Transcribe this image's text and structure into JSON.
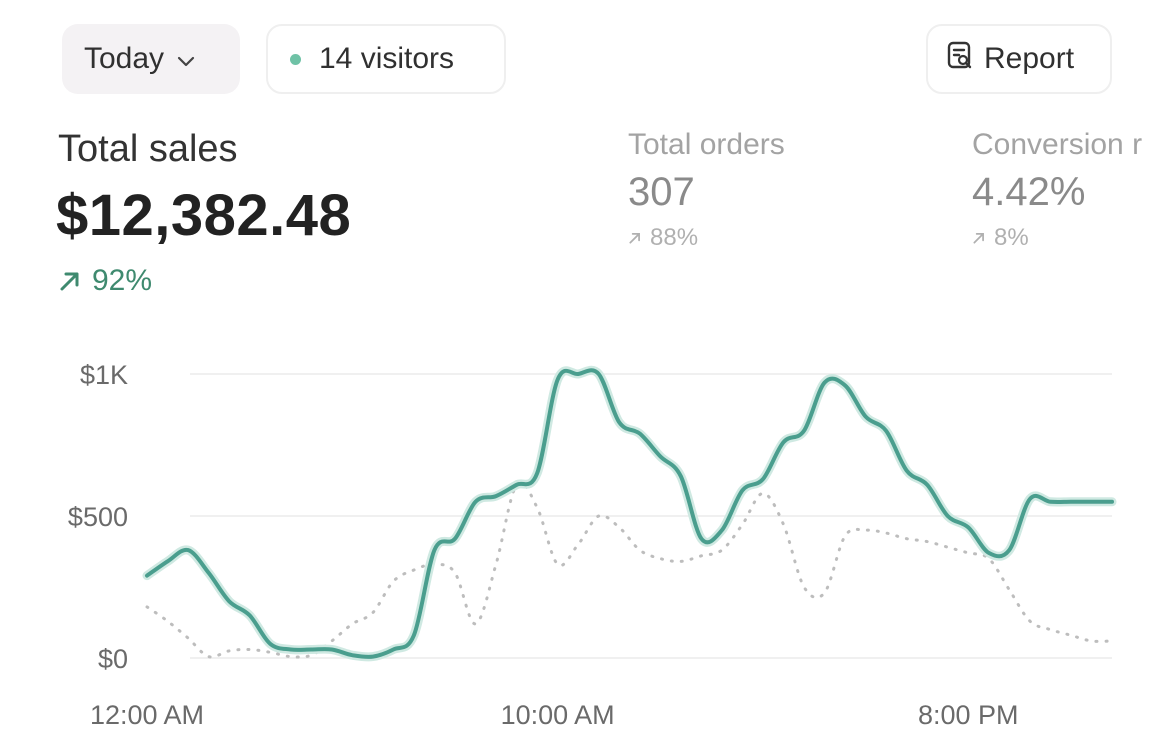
{
  "toolbar": {
    "period_label": "Today",
    "visitors_label": "14 visitors",
    "report_label": "Report",
    "visitors_dot_color": "#6fc2a6"
  },
  "metrics": {
    "total_sales": {
      "label": "Total sales",
      "value": "$12,382.48",
      "change": "92%"
    },
    "total_orders": {
      "label": "Total orders",
      "value": "307",
      "change": "88%"
    },
    "conversion": {
      "label": "Conversion r",
      "value": "4.42%",
      "change": "8%"
    }
  },
  "colors": {
    "accent": "#4a9e8e",
    "positive": "#3f8a6f",
    "comparison": "#bdbdbd"
  },
  "chart_data": {
    "type": "line",
    "y_tick_labels": [
      "$0",
      "$500",
      "$1K"
    ],
    "y_ticks": [
      0,
      500,
      1000
    ],
    "ylim": [
      0,
      1000
    ],
    "x_tick_labels": [
      "12:00 AM",
      "10:00 AM",
      "8:00 PM"
    ],
    "x_ticks": [
      0,
      10,
      20
    ],
    "xlim": [
      0,
      23.5
    ],
    "grid": true,
    "series": [
      {
        "style": "solid",
        "color": "#4a9e8e",
        "x": [
          0,
          0.5,
          1,
          1.5,
          2,
          2.5,
          3,
          3.5,
          4,
          4.5,
          5,
          5.5,
          6,
          6.5,
          7,
          7.5,
          8,
          8.5,
          9,
          9.5,
          10,
          10.5,
          11,
          11.5,
          12,
          12.5,
          13,
          13.5,
          14,
          14.5,
          15,
          15.5,
          16,
          16.5,
          17,
          17.5,
          18,
          18.5,
          19,
          19.5,
          20,
          20.5,
          21,
          21.5,
          22,
          22.5,
          23,
          23.5
        ],
        "values": [
          290,
          340,
          380,
          300,
          200,
          150,
          50,
          30,
          30,
          30,
          10,
          5,
          30,
          80,
          380,
          420,
          550,
          570,
          610,
          650,
          980,
          1000,
          1000,
          830,
          790,
          710,
          640,
          420,
          450,
          590,
          630,
          760,
          800,
          970,
          960,
          850,
          800,
          660,
          610,
          500,
          460,
          370,
          380,
          560,
          550,
          550,
          550,
          550
        ]
      },
      {
        "style": "dotted",
        "color": "#bdbdbd",
        "x": [
          0,
          0.5,
          1,
          1.5,
          2,
          2.5,
          3,
          3.5,
          4,
          4.5,
          5,
          5.5,
          6,
          6.5,
          7,
          7.5,
          8,
          8.5,
          9,
          9.5,
          10,
          10.5,
          11,
          11.5,
          12,
          12.5,
          13,
          13.5,
          14,
          14.5,
          15,
          15.5,
          16,
          16.5,
          17,
          17.5,
          18,
          18.5,
          19,
          19.5,
          20,
          20.5,
          21,
          21.5,
          22,
          22.5,
          23,
          23.5
        ],
        "values": [
          180,
          130,
          70,
          5,
          25,
          30,
          20,
          5,
          10,
          60,
          120,
          160,
          270,
          310,
          330,
          300,
          120,
          330,
          610,
          530,
          330,
          400,
          500,
          460,
          380,
          350,
          340,
          360,
          380,
          470,
          580,
          470,
          250,
          230,
          430,
          450,
          440,
          420,
          410,
          390,
          370,
          350,
          240,
          130,
          100,
          80,
          60,
          60
        ]
      }
    ]
  }
}
